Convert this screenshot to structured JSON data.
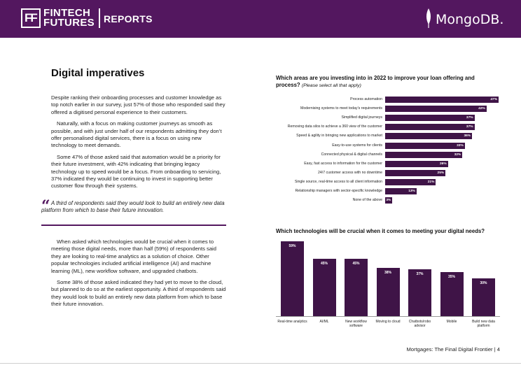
{
  "header": {
    "logo_mark": "FF",
    "brand_line1": "FINTECH",
    "brand_line2": "FUTURES",
    "section": "REPORTS",
    "partner": "MongoDB."
  },
  "left": {
    "title": "Digital imperatives",
    "paragraphs": [
      "Despite ranking their onboarding processes and customer knowledge as top notch earlier in our survey, just 57% of those who responded said they offered a digitised personal experience to their customers.",
      "Naturally, with a focus on making customer journeys as smooth as possible, and with just under half of our respondents admitting they don’t offer personalised digital services, there is a focus on using new technology to meet demands.",
      "Some 47% of those asked said that automation would be a priority for their future investment, with 42% indicating that bringing legacy technology up to speed would be a focus. From onboarding to servicing, 37% indicated they would be continuing to invest in supporting better customer flow through their systems."
    ],
    "quote": "A third of respondents said they would look to build an entirely new data platform from which to base their future innovation.",
    "paragraphs2": [
      "When asked which technologies would be crucial when it comes to meeting those digital needs, more than half (59%) of respondents said they are looking to real-time analytics as a solution of choice. Other popular technologies included artificial intelligence (AI) and machine learning (ML), new workflow software, and upgraded chatbots.",
      "Some 38% of those asked indicated they had yet to move to the cloud, but planned to do so at the earliest opportunity. A third of respondents said they would look to build an entirely new data platform from which to base their future innovation."
    ]
  },
  "chart_data": [
    {
      "type": "bar",
      "orientation": "horizontal",
      "title": "Which areas are you investing into in 2022 to improve your loan offering and process?",
      "subtitle": "(Please select all that apply)",
      "categories": [
        "Process automation",
        "Modernising systems to meet today’s requirements",
        "Simplified digital journeys",
        "Removing data silos to achieve a 360 view of the customer",
        "Speed & agility in bringing new applications to market",
        "Easy-to-use systems for clients",
        "Connected physical & digital channels",
        "Easy, fast access to information for the customer",
        "24/7 customer access with no downtime",
        "Single source, real-time access to all client information",
        "Relationship managers with sector-specific knowledge",
        "None of the above"
      ],
      "values": [
        47,
        42,
        37,
        37,
        36,
        33,
        32,
        26,
        25,
        21,
        13,
        3
      ],
      "value_suffix": "%",
      "xlim": [
        0,
        47
      ],
      "bar_color": "#3f1447"
    },
    {
      "type": "bar",
      "orientation": "vertical",
      "title": "Which technologies will be crucial when it comes to meeting your digital needs?",
      "categories": [
        "Real-time analytics",
        "AI/ML",
        "New workflow software",
        "Moving to cloud",
        "Chatbots/robo advisor",
        "Mobile",
        "Build new data platform"
      ],
      "values": [
        59,
        45,
        45,
        38,
        37,
        35,
        30
      ],
      "value_suffix": "%",
      "ylim": [
        0,
        59
      ],
      "bar_color": "#3f1447"
    }
  ],
  "footer": {
    "text": "Mortgages: The Final Digital Frontier | 4"
  }
}
